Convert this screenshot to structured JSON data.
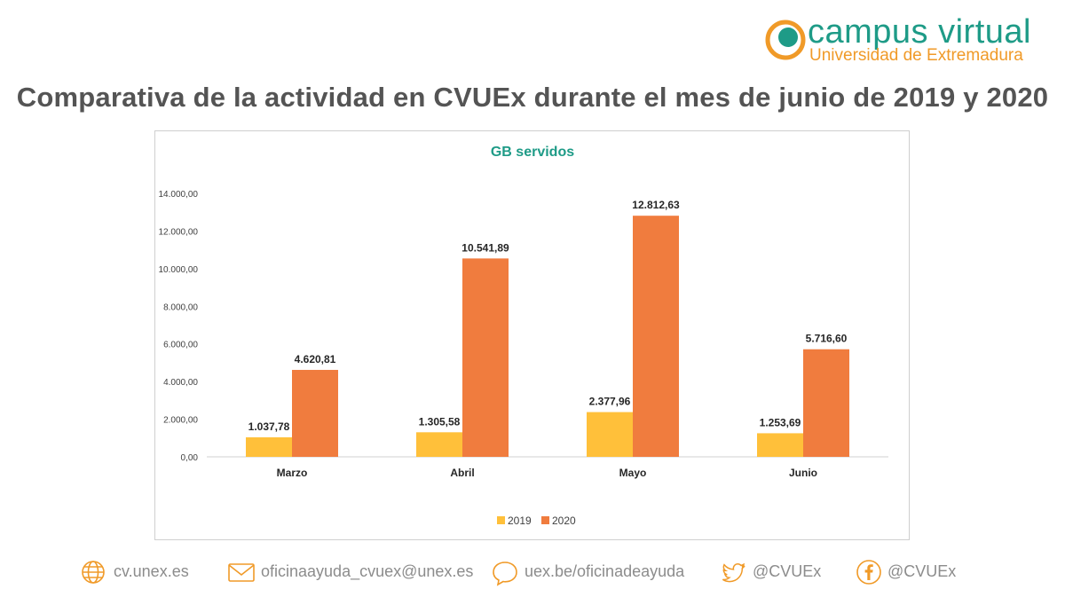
{
  "brand": {
    "title": "campus virtual",
    "subtitle": "Universidad de Extremadura",
    "colors": {
      "green": "#1e9b87",
      "orange": "#f09a28"
    }
  },
  "page_title": "Comparativa de la actividad en CVUEx durante el mes de junio de 2019 y 2020",
  "chart_data": {
    "type": "bar",
    "title": "GB servidos",
    "categories": [
      "Marzo",
      "Abril",
      "Mayo",
      "Junio"
    ],
    "series": [
      {
        "name": "2019",
        "color": "#ffc03a",
        "values": [
          1037.78,
          1305.58,
          2377.96,
          1253.69
        ],
        "labels": [
          "1.037,78",
          "1.305,58",
          "2.377,96",
          "1.253,69"
        ]
      },
      {
        "name": "2020",
        "color": "#f07c3e",
        "values": [
          4620.81,
          10541.89,
          12812.63,
          5716.6
        ],
        "labels": [
          "4.620,81",
          "10.541,89",
          "12.812,63",
          "5.716,60"
        ]
      }
    ],
    "ylim": [
      0,
      14000
    ],
    "yticks": [
      0,
      2000,
      4000,
      6000,
      8000,
      10000,
      12000,
      14000
    ],
    "ytick_labels": [
      "0,00",
      "2.000,00",
      "4.000,00",
      "6.000,00",
      "8.000,00",
      "10.000,00",
      "12.000,00",
      "14.000,00"
    ],
    "grid": false,
    "legend_position": "bottom",
    "title_color": "#1e9b87"
  },
  "footer": {
    "web": "cv.unex.es",
    "email": "oficinaayuda_cvuex@unex.es",
    "help": "uex.be/oficinadeayuda",
    "twitter": "@CVUEx",
    "facebook": "@CVUEx",
    "icon_color": "#f09a28",
    "icons": [
      "globe-icon",
      "mail-icon",
      "chat-icon",
      "twitter-icon",
      "facebook-icon"
    ]
  }
}
